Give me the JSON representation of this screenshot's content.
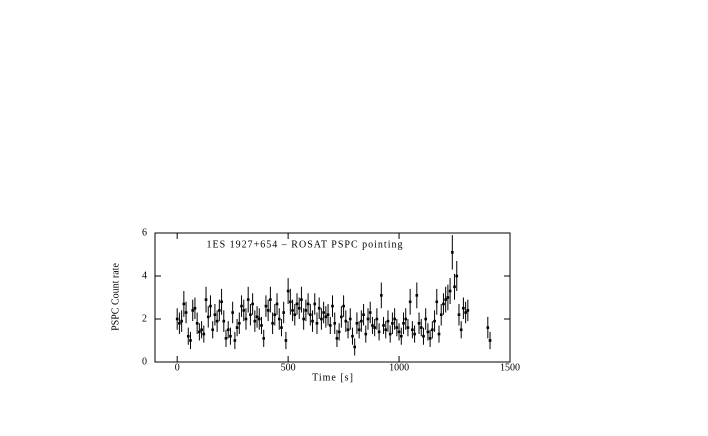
{
  "chart_data": {
    "type": "scatter",
    "title": "1ES 1927+654 – ROSAT PSPC pointing",
    "xlabel": "Time [s]",
    "ylabel": "PSPC Count rate",
    "xlim": [
      -100,
      1500
    ],
    "xticks": [
      0,
      500,
      1000,
      1500
    ],
    "ylim": [
      0,
      6
    ],
    "yticks": [
      0,
      2,
      4,
      6
    ],
    "color": "#000000",
    "x": [
      0,
      10,
      20,
      30,
      40,
      50,
      60,
      70,
      80,
      90,
      100,
      110,
      120,
      130,
      140,
      150,
      160,
      170,
      180,
      190,
      200,
      210,
      220,
      230,
      240,
      250,
      260,
      270,
      280,
      290,
      300,
      310,
      320,
      330,
      340,
      350,
      360,
      370,
      380,
      390,
      400,
      410,
      420,
      430,
      440,
      450,
      460,
      470,
      480,
      490,
      500,
      510,
      520,
      530,
      540,
      550,
      560,
      570,
      580,
      590,
      600,
      610,
      620,
      630,
      640,
      650,
      660,
      670,
      680,
      690,
      700,
      710,
      720,
      730,
      740,
      750,
      760,
      770,
      780,
      790,
      800,
      810,
      820,
      830,
      840,
      850,
      860,
      870,
      880,
      890,
      900,
      910,
      920,
      930,
      940,
      950,
      960,
      970,
      980,
      990,
      1000,
      1010,
      1020,
      1030,
      1040,
      1050,
      1060,
      1070,
      1080,
      1090,
      1100,
      1110,
      1120,
      1130,
      1140,
      1150,
      1160,
      1170,
      1180,
      1190,
      1200,
      1210,
      1220,
      1230,
      1240,
      1250,
      1260,
      1270,
      1280,
      1290,
      1300,
      1310,
      1400,
      1410
    ],
    "y": [
      2.0,
      1.8,
      1.9,
      2.7,
      2.3,
      1.2,
      1.0,
      2.4,
      2.5,
      1.8,
      1.4,
      1.5,
      1.3,
      2.9,
      2.1,
      2.6,
      1.5,
      2.2,
      1.9,
      2.4,
      2.8,
      1.9,
      1.1,
      1.5,
      1.2,
      2.3,
      1.0,
      1.6,
      1.8,
      2.6,
      2.4,
      2.0,
      2.9,
      2.2,
      2.7,
      1.9,
      2.1,
      2.0,
      1.7,
      1.1,
      2.6,
      2.4,
      2.9,
      1.8,
      2.2,
      2.7,
      2.0,
      1.6,
      2.3,
      1.0,
      3.3,
      2.8,
      2.4,
      2.2,
      2.7,
      2.5,
      2.9,
      2.0,
      2.4,
      2.7,
      2.2,
      1.9,
      2.7,
      1.8,
      2.5,
      2.0,
      2.3,
      2.1,
      2.2,
      1.7,
      2.6,
      1.8,
      1.1,
      1.4,
      2.1,
      2.6,
      1.9,
      1.5,
      2.0,
      1.2,
      0.7,
      1.8,
      1.5,
      1.9,
      2.2,
      1.3,
      2.0,
      2.3,
      1.7,
      1.6,
      2.0,
      1.4,
      3.1,
      1.7,
      1.5,
      1.9,
      1.3,
      1.8,
      2.0,
      1.6,
      1.4,
      1.2,
      1.8,
      2.0,
      1.6,
      2.8,
      1.5,
      1.3,
      3.1,
      1.8,
      1.6,
      1.2,
      2.0,
      1.4,
      1.1,
      1.5,
      1.9,
      2.8,
      1.3,
      2.2,
      2.7,
      2.9,
      3.0,
      3.3,
      5.1,
      3.5,
      4.0,
      2.2,
      1.5,
      2.5,
      2.3,
      2.4,
      1.6,
      1.0
    ],
    "errors": [
      0.5,
      0.5,
      0.5,
      0.6,
      0.5,
      0.4,
      0.4,
      0.5,
      0.5,
      0.5,
      0.4,
      0.4,
      0.4,
      0.6,
      0.5,
      0.5,
      0.4,
      0.5,
      0.5,
      0.5,
      0.6,
      0.5,
      0.4,
      0.4,
      0.4,
      0.5,
      0.4,
      0.4,
      0.5,
      0.5,
      0.5,
      0.5,
      0.6,
      0.5,
      0.5,
      0.5,
      0.5,
      0.5,
      0.4,
      0.4,
      0.5,
      0.5,
      0.6,
      0.5,
      0.5,
      0.5,
      0.5,
      0.4,
      0.5,
      0.4,
      0.6,
      0.6,
      0.5,
      0.5,
      0.5,
      0.5,
      0.6,
      0.5,
      0.5,
      0.5,
      0.5,
      0.5,
      0.5,
      0.5,
      0.5,
      0.5,
      0.5,
      0.5,
      0.5,
      0.4,
      0.5,
      0.5,
      0.4,
      0.4,
      0.5,
      0.5,
      0.5,
      0.4,
      0.5,
      0.4,
      0.4,
      0.5,
      0.4,
      0.5,
      0.5,
      0.4,
      0.5,
      0.5,
      0.4,
      0.4,
      0.5,
      0.4,
      0.6,
      0.4,
      0.4,
      0.5,
      0.4,
      0.5,
      0.5,
      0.4,
      0.4,
      0.4,
      0.5,
      0.5,
      0.4,
      0.6,
      0.4,
      0.4,
      0.6,
      0.5,
      0.4,
      0.4,
      0.5,
      0.4,
      0.4,
      0.4,
      0.5,
      0.6,
      0.4,
      0.5,
      0.5,
      0.6,
      0.6,
      0.6,
      0.8,
      0.6,
      0.7,
      0.5,
      0.4,
      0.5,
      0.5,
      0.5,
      0.5,
      0.4
    ]
  }
}
